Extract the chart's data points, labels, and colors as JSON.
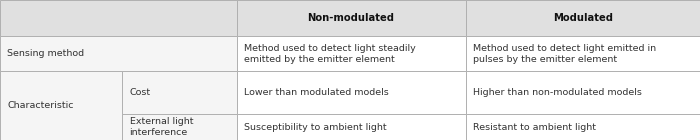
{
  "figsize": [
    7.0,
    1.4
  ],
  "dpi": 100,
  "background_color": "#f5f5f5",
  "header_bg": "#e0e0e0",
  "cell_bg": "#ffffff",
  "sensing_bg": "#f5f5f5",
  "char_bg": "#f5f5f5",
  "border_color": "#b0b0b0",
  "header_text_color": "#111111",
  "cell_text_color": "#333333",
  "header_fontsize": 7.2,
  "cell_fontsize": 6.8,
  "headers": [
    "Non-modulated",
    "Modulated"
  ],
  "col_bounds": [
    0.0,
    0.175,
    0.338,
    0.665,
    1.0
  ],
  "row_bounds": [
    0.0,
    0.185,
    0.49,
    0.745,
    1.0
  ]
}
